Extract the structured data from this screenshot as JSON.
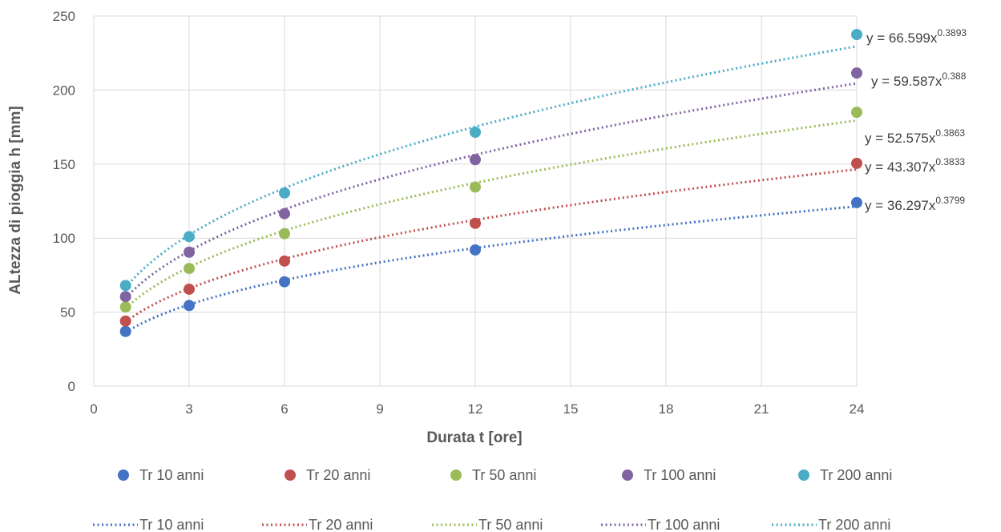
{
  "chart_data": {
    "type": "scatter",
    "xlabel": "Durata t [ore]",
    "ylabel": "ALtezza di pioggia h [mm]",
    "xlim": [
      0,
      24
    ],
    "ylim": [
      0,
      250
    ],
    "x_ticks": [
      "0",
      "3",
      "6",
      "9",
      "12",
      "15",
      "18",
      "21",
      "24"
    ],
    "y_ticks": [
      "0",
      "50",
      "100",
      "150",
      "200",
      "250"
    ],
    "grid": true,
    "legend_position": "bottom",
    "x": [
      1,
      3,
      6,
      12,
      24
    ],
    "series": [
      {
        "name": "Tr 10 anni",
        "color": "#4472C4",
        "values": [
          37,
          54.5,
          70.5,
          92,
          124
        ],
        "trend": {
          "a": 36.297,
          "b": 0.3799,
          "base": "y = 36.297x",
          "exp": "0.3799"
        }
      },
      {
        "name": "Tr 20 anni",
        "color": "#C0504D",
        "values": [
          44,
          65.5,
          84.5,
          110,
          150.5
        ],
        "trend": {
          "a": 43.307,
          "b": 0.3833,
          "base": "y = 43.307x",
          "exp": "0.3833"
        }
      },
      {
        "name": "Tr 50 anni",
        "color": "#9BBB59",
        "values": [
          53.5,
          79.5,
          103,
          134.5,
          185
        ],
        "trend": {
          "a": 52.575,
          "b": 0.3863,
          "base": "y = 52.575x",
          "exp": "0.3863"
        }
      },
      {
        "name": "Tr 100 anni",
        "color": "#8064A2",
        "values": [
          60.5,
          90.5,
          116.5,
          153,
          211.5
        ],
        "trend": {
          "a": 59.587,
          "b": 0.388,
          "base": "y = 59.587x",
          "exp": "0.388"
        }
      },
      {
        "name": "Tr 200 anni",
        "color": "#4BACC6",
        "values": [
          68,
          101,
          130.5,
          171.5,
          237.5
        ],
        "trend": {
          "a": 66.599,
          "b": 0.3893,
          "base": "y = 66.599x",
          "exp": "0.3893"
        }
      }
    ]
  }
}
